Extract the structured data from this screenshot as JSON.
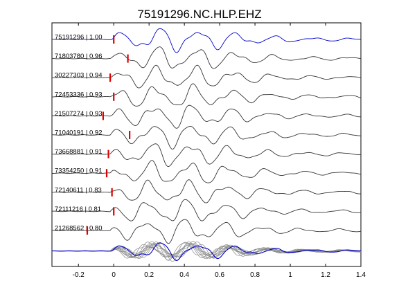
{
  "chart_data": {
    "type": "line",
    "title": "75191296.NC.HLP.EHZ",
    "xlabel": "",
    "ylabel": "",
    "xlim": [
      -0.35,
      1.4
    ],
    "x_ticks": [
      -0.2,
      0,
      0.2,
      0.4,
      0.6,
      0.8,
      1,
      1.2,
      1.4
    ],
    "x_tick_labels": [
      "-0.2",
      "0",
      "0.2",
      "0.4",
      "0.6",
      "0.8",
      "1",
      "1.2",
      "1.4"
    ],
    "grid": false,
    "colors": {
      "reference": "#0000cc",
      "trace": "#333333",
      "overlay": "#888888",
      "pick": "#dd0000"
    },
    "traces": [
      {
        "label": "75191296 | 1.00",
        "pick_time": 0.0,
        "lag": 0.0,
        "reference": true
      },
      {
        "label": "71803780 | 0.96",
        "pick_time": 0.08,
        "lag": 0.0
      },
      {
        "label": "30227303 | 0.94",
        "pick_time": -0.02,
        "lag": 0.0
      },
      {
        "label": "72453336 | 0.93",
        "pick_time": 0.0,
        "lag": 0.0
      },
      {
        "label": "21507274 | 0.93",
        "pick_time": -0.06,
        "lag": 0.0
      },
      {
        "label": "71040191 | 0.92",
        "pick_time": 0.09,
        "lag": 0.0
      },
      {
        "label": "73668881 | 0.91",
        "pick_time": -0.03,
        "lag": 0.0
      },
      {
        "label": "73354250 | 0.91",
        "pick_time": -0.04,
        "lag": 0.0
      },
      {
        "label": "72140611 | 0.83",
        "pick_time": -0.01,
        "lag": 0.0
      },
      {
        "label": "72111216 | 0.81",
        "pick_time": 0.0,
        "lag": 0.0
      },
      {
        "label": "21268562 | 0.80",
        "pick_time": -0.15,
        "lag": 0.0
      }
    ],
    "stack_row": true
  }
}
